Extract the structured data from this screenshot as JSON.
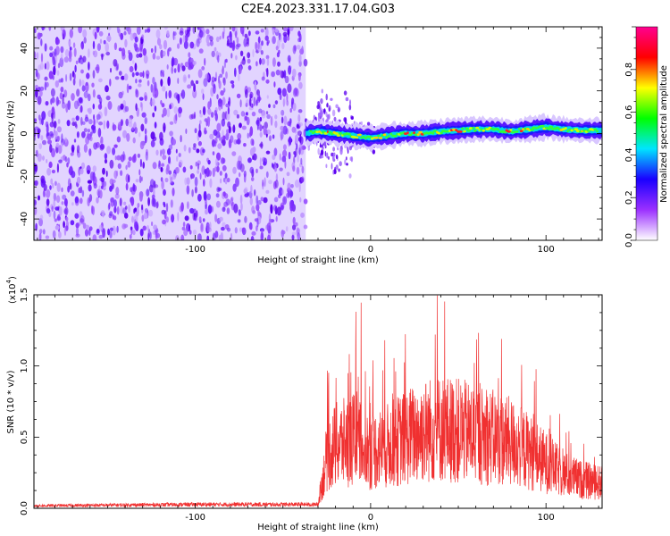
{
  "title": "C2E4.2023.331.17.04.G03",
  "chart_data": [
    {
      "type": "heatmap",
      "xlabel": "Height of straight line (km)",
      "ylabel": "Frequency (Hz)",
      "xlim": [
        -192,
        132
      ],
      "ylim": [
        -50,
        50
      ],
      "x_ticks": [
        -100,
        0,
        100
      ],
      "x_tick_labels": [
        "-100",
        "0",
        "100"
      ],
      "y_ticks": [
        -40,
        -20,
        0,
        20,
        40
      ],
      "y_tick_labels": [
        "-40",
        "-20",
        "0",
        "20",
        "40"
      ],
      "noise_region_x": [
        -192,
        -37
      ],
      "signal_trace": {
        "x": [
          -37,
          -30,
          -20,
          -10,
          0,
          10,
          20,
          30,
          40,
          50,
          60,
          70,
          80,
          90,
          100,
          110,
          120,
          132
        ],
        "y": [
          0,
          1,
          0,
          -1,
          -2,
          -1,
          0,
          0,
          1,
          1.5,
          2,
          2,
          1,
          2,
          3,
          2,
          1.5,
          1.5
        ]
      },
      "colorbar": {
        "label": "Normalized spectral amplitude",
        "range": [
          0,
          1
        ],
        "ticks": [
          0.0,
          0.2,
          0.4,
          0.6,
          0.8
        ],
        "tick_labels": [
          "0.0",
          "0.2",
          "0.4",
          "0.6",
          "0.8"
        ],
        "colors": [
          "#ffffff",
          "#9b30ff",
          "#1a00ff",
          "#00e5ff",
          "#00ff00",
          "#ffff00",
          "#ff0000",
          "#ff0090"
        ]
      }
    },
    {
      "type": "line",
      "xlabel": "Height of straight line (km)",
      "ylabel": "SNR (10 * v/v)",
      "multiplier_label": "(x10",
      "multiplier_exp": "4",
      "xlim": [
        -192,
        132
      ],
      "ylim": [
        0,
        1.5
      ],
      "x_ticks": [
        -100,
        0,
        100
      ],
      "x_tick_labels": [
        "-100",
        "0",
        "100"
      ],
      "y_ticks": [
        0.0,
        0.5,
        1.0,
        1.5
      ],
      "y_tick_labels": [
        "0.0",
        "0.5",
        "1.0",
        "1.5"
      ],
      "color": "#f03030",
      "envelope": {
        "x": [
          -192,
          -100,
          -30,
          -25,
          -20,
          -10,
          0,
          10,
          20,
          30,
          40,
          50,
          60,
          70,
          80,
          90,
          100,
          110,
          120,
          132
        ],
        "y": [
          0.02,
          0.03,
          0.03,
          0.45,
          0.55,
          0.6,
          0.5,
          0.55,
          0.62,
          0.68,
          0.7,
          0.68,
          0.65,
          0.62,
          0.58,
          0.5,
          0.4,
          0.3,
          0.25,
          0.22
        ]
      }
    }
  ]
}
